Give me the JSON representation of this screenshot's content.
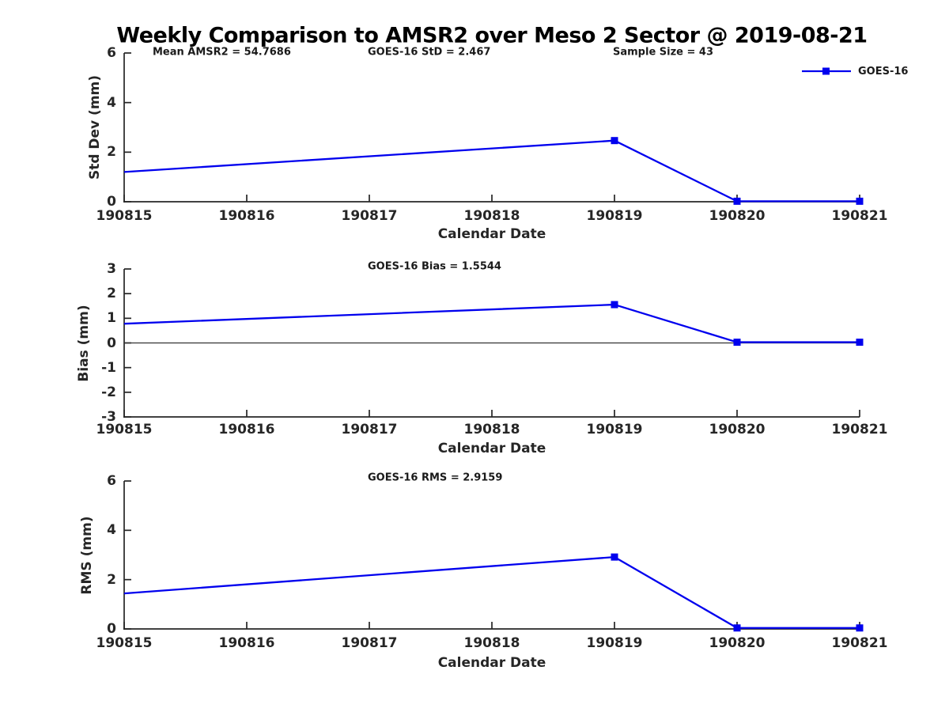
{
  "title": "Weekly Comparison to AMSR2 over Meso 2 Sector @ 2019-08-21",
  "legend": {
    "label": "GOES-16",
    "color": "#0000EE",
    "marker": "filled-square"
  },
  "chart_data": [
    {
      "type": "line",
      "annotations": [
        "Mean AMSR2 = 54.7686",
        "GOES-16 StD = 2.467",
        "Sample Size = 43"
      ],
      "ylabel": "Std Dev (mm)",
      "xlabel": "Calendar Date",
      "ylim": [
        0,
        6
      ],
      "yticks": [
        0,
        2,
        4,
        6
      ],
      "categories": [
        "190815",
        "190816",
        "190817",
        "190818",
        "190819",
        "190820",
        "190821"
      ],
      "grid": false,
      "zero_line": false,
      "legend_position": "top-right-outside",
      "series": [
        {
          "name": "GOES-16",
          "x": [
            "190815",
            "190819",
            "190820",
            "190821"
          ],
          "values": [
            1.2,
            2.467,
            0.02,
            0.02
          ]
        }
      ]
    },
    {
      "type": "line",
      "annotations": [
        "GOES-16 Bias  = 1.5544"
      ],
      "ylabel": "Bias (mm)",
      "xlabel": "Calendar Date",
      "ylim": [
        -3,
        3
      ],
      "yticks": [
        -3,
        -2,
        -1,
        0,
        1,
        2,
        3
      ],
      "categories": [
        "190815",
        "190816",
        "190817",
        "190818",
        "190819",
        "190820",
        "190821"
      ],
      "grid": false,
      "zero_line": true,
      "series": [
        {
          "name": "GOES-16",
          "x": [
            "190815",
            "190819",
            "190820",
            "190821"
          ],
          "values": [
            0.78,
            1.5544,
            0.03,
            0.03
          ]
        }
      ]
    },
    {
      "type": "line",
      "annotations": [
        "GOES-16 RMS = 2.9159"
      ],
      "ylabel": "RMS (mm)",
      "xlabel": "Calendar Date",
      "ylim": [
        0,
        6
      ],
      "yticks": [
        0,
        2,
        4,
        6
      ],
      "categories": [
        "190815",
        "190816",
        "190817",
        "190818",
        "190819",
        "190820",
        "190821"
      ],
      "grid": false,
      "zero_line": false,
      "series": [
        {
          "name": "GOES-16",
          "x": [
            "190815",
            "190819",
            "190820",
            "190821"
          ],
          "values": [
            1.44,
            2.9159,
            0.04,
            0.04
          ]
        }
      ]
    }
  ]
}
